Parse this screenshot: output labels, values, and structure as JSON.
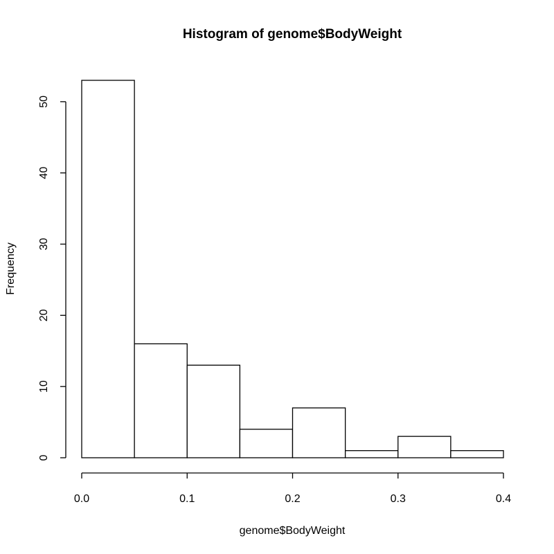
{
  "chart_data": {
    "type": "bar",
    "title": "Histogram of genome$BodyWeight",
    "xlabel": "genome$BodyWeight",
    "ylabel": "Frequency",
    "bins": [
      {
        "start": 0.0,
        "end": 0.05,
        "count": 53
      },
      {
        "start": 0.05,
        "end": 0.1,
        "count": 16
      },
      {
        "start": 0.1,
        "end": 0.15,
        "count": 13
      },
      {
        "start": 0.15,
        "end": 0.2,
        "count": 4
      },
      {
        "start": 0.2,
        "end": 0.25,
        "count": 7
      },
      {
        "start": 0.25,
        "end": 0.3,
        "count": 1
      },
      {
        "start": 0.3,
        "end": 0.35,
        "count": 3
      },
      {
        "start": 0.35,
        "end": 0.4,
        "count": 1
      }
    ],
    "xlim": [
      0,
      0.4
    ],
    "ylim": [
      0,
      53
    ],
    "x_ticks": [
      {
        "value": 0.0,
        "label": "0.0"
      },
      {
        "value": 0.1,
        "label": "0.1"
      },
      {
        "value": 0.2,
        "label": "0.2"
      },
      {
        "value": 0.3,
        "label": "0.3"
      },
      {
        "value": 0.4,
        "label": "0.4"
      }
    ],
    "y_ticks": [
      {
        "value": 0,
        "label": "0"
      },
      {
        "value": 10,
        "label": "10"
      },
      {
        "value": 20,
        "label": "20"
      },
      {
        "value": 30,
        "label": "30"
      },
      {
        "value": 40,
        "label": "40"
      },
      {
        "value": 50,
        "label": "50"
      }
    ],
    "grid": false,
    "bar_fill": "#ffffff",
    "bar_stroke": "#000000"
  }
}
